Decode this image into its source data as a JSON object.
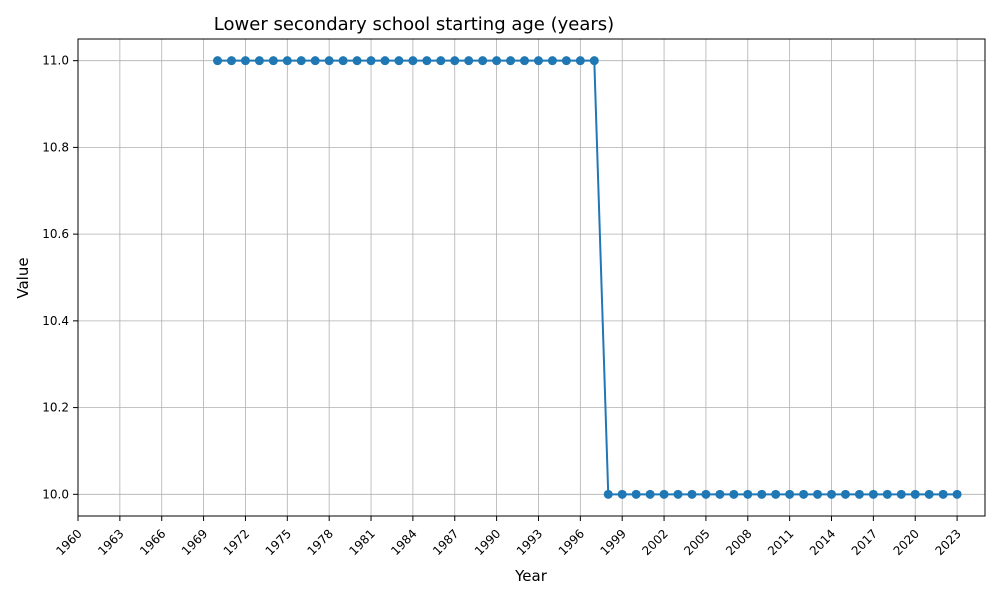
{
  "chart_data": {
    "type": "line",
    "title": "Lower secondary school starting age (years)",
    "xlabel": "Year",
    "ylabel": "Value",
    "xlim": [
      1960,
      2025
    ],
    "ylim": [
      9.95,
      11.05
    ],
    "grid": true,
    "x_ticks": [
      1960,
      1963,
      1966,
      1969,
      1972,
      1975,
      1978,
      1981,
      1984,
      1987,
      1990,
      1993,
      1996,
      1999,
      2002,
      2005,
      2008,
      2011,
      2014,
      2017,
      2020,
      2023
    ],
    "y_ticks": [
      "10.0",
      "10.2",
      "10.4",
      "10.6",
      "10.8",
      "11.0"
    ],
    "color": "#1f77b4",
    "x": [
      1970,
      1971,
      1972,
      1973,
      1974,
      1975,
      1976,
      1977,
      1978,
      1979,
      1980,
      1981,
      1982,
      1983,
      1984,
      1985,
      1986,
      1987,
      1988,
      1989,
      1990,
      1991,
      1992,
      1993,
      1994,
      1995,
      1996,
      1997,
      1998,
      1999,
      2000,
      2001,
      2002,
      2003,
      2004,
      2005,
      2006,
      2007,
      2008,
      2009,
      2010,
      2011,
      2012,
      2013,
      2014,
      2015,
      2016,
      2017,
      2018,
      2019,
      2020,
      2021,
      2022,
      2023
    ],
    "values": [
      11,
      11,
      11,
      11,
      11,
      11,
      11,
      11,
      11,
      11,
      11,
      11,
      11,
      11,
      11,
      11,
      11,
      11,
      11,
      11,
      11,
      11,
      11,
      11,
      11,
      11,
      11,
      11,
      10,
      10,
      10,
      10,
      10,
      10,
      10,
      10,
      10,
      10,
      10,
      10,
      10,
      10,
      10,
      10,
      10,
      10,
      10,
      10,
      10,
      10,
      10,
      10,
      10,
      10
    ]
  }
}
